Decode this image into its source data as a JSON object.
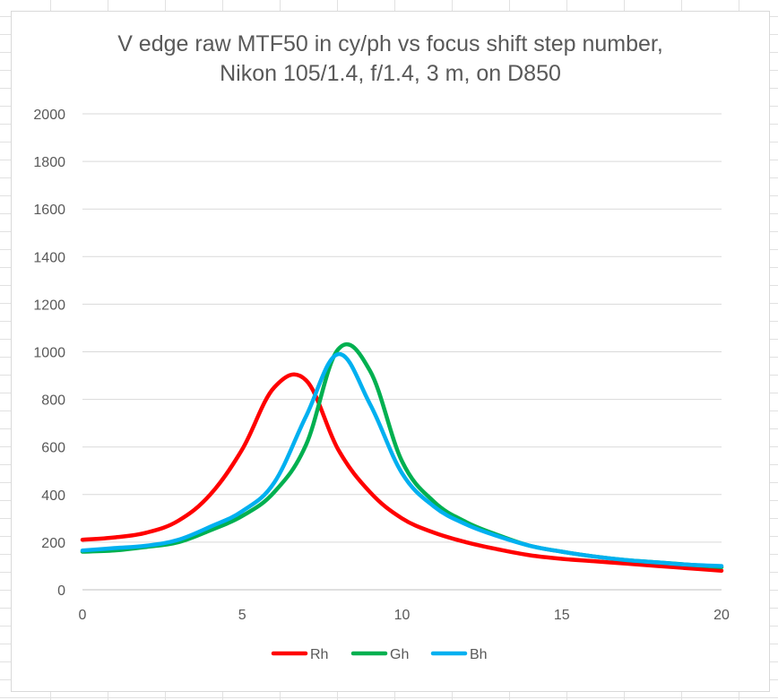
{
  "chart_data": {
    "type": "line",
    "title_lines": [
      "V edge raw MTF50 in cy/ph vs focus shift step number,",
      "Nikon 105/1.4, f/1.4, 3 m, on D850"
    ],
    "xlim": [
      0,
      20
    ],
    "ylim": [
      0,
      2000
    ],
    "x_ticks": [
      0,
      5,
      10,
      15,
      20
    ],
    "y_ticks": [
      0,
      200,
      400,
      600,
      800,
      1000,
      1200,
      1400,
      1600,
      1800,
      2000
    ],
    "grid": "horizontal",
    "legend_position": "bottom",
    "x": [
      0,
      1,
      2,
      3,
      4,
      5,
      6,
      7,
      8,
      9,
      10,
      11,
      12,
      13,
      14,
      15,
      16,
      17,
      18,
      19,
      20
    ],
    "series": [
      {
        "name": "Rh",
        "color": "#ff0000",
        "values": [
          210,
          220,
          240,
          290,
          400,
          590,
          850,
          880,
          590,
          410,
          300,
          240,
          200,
          170,
          145,
          130,
          120,
          110,
          100,
          90,
          80
        ]
      },
      {
        "name": "Gh",
        "color": "#00b050",
        "values": [
          160,
          165,
          180,
          200,
          250,
          310,
          410,
          610,
          1010,
          920,
          540,
          370,
          285,
          230,
          185,
          160,
          140,
          125,
          115,
          105,
          95
        ]
      },
      {
        "name": "Bh",
        "color": "#00b0f0",
        "values": [
          165,
          175,
          185,
          210,
          265,
          330,
          450,
          730,
          990,
          780,
          490,
          350,
          275,
          225,
          185,
          160,
          140,
          125,
          115,
          105,
          100
        ]
      }
    ]
  }
}
